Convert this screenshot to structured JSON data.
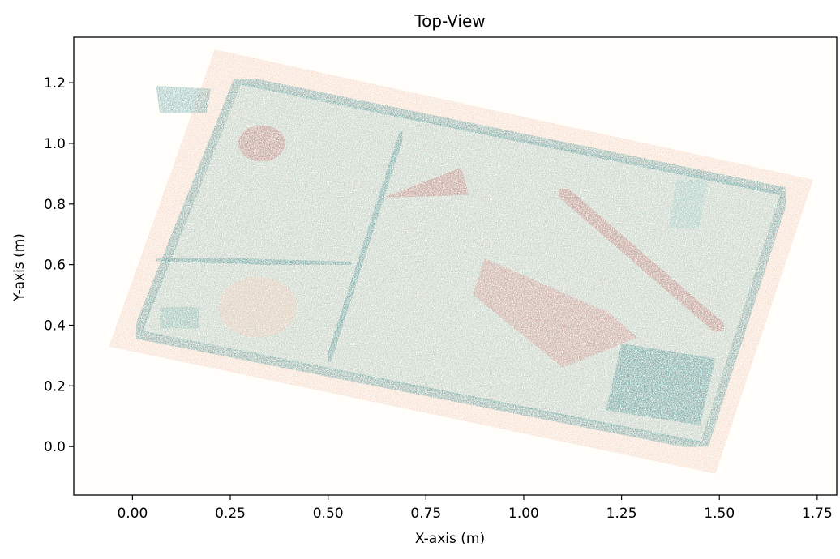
{
  "chart_data": {
    "type": "scatter",
    "title": "Top-View",
    "xlabel": "X-axis (m)",
    "ylabel": "Y-axis (m)",
    "xlim": [
      -0.15,
      1.8
    ],
    "ylim": [
      -0.16,
      1.35
    ],
    "xticks": [
      0.0,
      0.25,
      0.5,
      0.75,
      1.0,
      1.25,
      1.5,
      1.75
    ],
    "xtick_labels": [
      "0.00",
      "0.25",
      "0.50",
      "0.75",
      "1.00",
      "1.25",
      "1.50",
      "1.75"
    ],
    "yticks": [
      0.0,
      0.2,
      0.4,
      0.6,
      0.8,
      1.0,
      1.2
    ],
    "ytick_labels": [
      "0.0",
      "0.2",
      "0.4",
      "0.6",
      "0.8",
      "1.0",
      "1.2"
    ],
    "grid": false,
    "legend": "none",
    "background_color": "#fffefa",
    "point_cloud_regions": [
      {
        "kind": "outer-pad",
        "color": "#f3cfbb",
        "polygon": [
          [
            0.21,
            1.31
          ],
          [
            1.74,
            0.88
          ],
          [
            1.49,
            -0.09
          ],
          [
            -0.06,
            0.33
          ]
        ]
      },
      {
        "kind": "tray-body",
        "color": "#a9d2cc",
        "polygon": [
          [
            0.28,
            1.2
          ],
          [
            1.66,
            0.84
          ],
          [
            1.45,
            0.01
          ],
          [
            0.02,
            0.38
          ]
        ]
      },
      {
        "kind": "tray-rim",
        "color": "#5f9ea0",
        "polygon": [
          [
            0.27,
            1.21
          ],
          [
            1.67,
            0.84
          ],
          [
            1.46,
            0.0
          ],
          [
            0.01,
            0.37
          ]
        ]
      },
      {
        "kind": "divider-vertical",
        "color": "#5f9ea0",
        "polyline": [
          [
            0.69,
            1.04
          ],
          [
            0.5,
            0.28
          ]
        ]
      },
      {
        "kind": "divider-horizontal",
        "color": "#5f9ea0",
        "polyline": [
          [
            0.06,
            0.62
          ],
          [
            0.56,
            0.6
          ]
        ]
      },
      {
        "kind": "handle",
        "color": "#6fa7a6",
        "polygon": [
          [
            0.06,
            1.19
          ],
          [
            0.2,
            1.18
          ],
          [
            0.19,
            1.1
          ],
          [
            0.07,
            1.1
          ]
        ]
      },
      {
        "kind": "disc",
        "color": "#f3cfbb",
        "center": [
          0.32,
          0.46
        ],
        "radius": 0.1
      },
      {
        "kind": "stick",
        "color": "#c98785",
        "polyline": [
          [
            1.09,
            0.85
          ],
          [
            1.51,
            0.38
          ]
        ]
      },
      {
        "kind": "blob",
        "color": "#c98785",
        "center": [
          0.33,
          1.0
        ],
        "radius": 0.06
      },
      {
        "kind": "triangle-object",
        "color": "#c98785",
        "polygon": [
          [
            0.64,
            0.82
          ],
          [
            0.84,
            0.92
          ],
          [
            0.86,
            0.83
          ]
        ]
      },
      {
        "kind": "slab",
        "color": "#d79c98",
        "polygon": [
          [
            0.9,
            0.62
          ],
          [
            1.22,
            0.44
          ],
          [
            1.29,
            0.36
          ],
          [
            1.1,
            0.26
          ],
          [
            0.87,
            0.5
          ]
        ]
      },
      {
        "kind": "square-bin",
        "color": "#5f9ea0",
        "polygon": [
          [
            1.25,
            0.34
          ],
          [
            1.49,
            0.29
          ],
          [
            1.45,
            0.07
          ],
          [
            1.21,
            0.12
          ]
        ]
      },
      {
        "kind": "small-box",
        "color": "#8fbfba",
        "polygon": [
          [
            0.07,
            0.46
          ],
          [
            0.17,
            0.46
          ],
          [
            0.17,
            0.39
          ],
          [
            0.07,
            0.39
          ]
        ]
      },
      {
        "kind": "clip",
        "color": "#a9d2cc",
        "polygon": [
          [
            1.39,
            0.88
          ],
          [
            1.47,
            0.88
          ],
          [
            1.45,
            0.72
          ],
          [
            1.37,
            0.72
          ]
        ]
      }
    ]
  }
}
